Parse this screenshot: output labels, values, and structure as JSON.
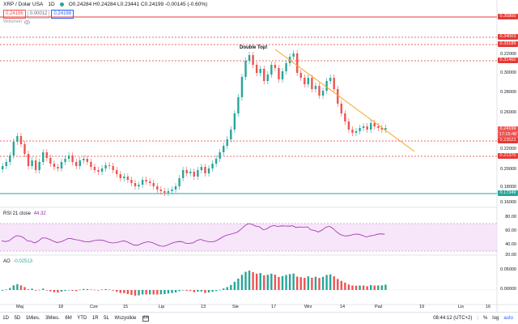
{
  "header": {
    "symbol_title": "XRP / Dolar USA",
    "interval": "1D",
    "ohlc": "O0.24284 H0.24284 L0.23441 C0.24199 -0.00145 (-0.60%)",
    "sell_price": "0.24186",
    "spread": "0.00012",
    "buy_price": "0.24198"
  },
  "volume_label": "Wolumen",
  "chart": {
    "annotation": "Double Top!",
    "price_axis_ticks": [
      "0.30000",
      "0.28000",
      "0.26000",
      "0.22000",
      "0.20000",
      "0.18000",
      "0.16000"
    ],
    "horizontal_levels": [
      {
        "label": "0.35800",
        "color": "#e53935"
      },
      {
        "label": "0.34003",
        "color": "#e53935"
      },
      {
        "label": "0.33189",
        "color": "#e53935"
      },
      {
        "label": "0.31460",
        "color": "#e53935"
      },
      {
        "label": "0.23523",
        "color": "#e53935"
      },
      {
        "label": "0.21370",
        "color": "#e53935"
      },
      {
        "label": "0.17349",
        "color": "#26a69a"
      }
    ],
    "current_price_tag": "0.24199",
    "countdown_tag": "17:15:48",
    "extra_price_tag": "0.22000",
    "x_ticks": [
      "Maj",
      "18",
      "Cze",
      "15",
      "Lip",
      "13",
      "Sie",
      "17",
      "Wrz",
      "14",
      "Paź",
      "19",
      "Lis",
      "16"
    ]
  },
  "rsi": {
    "label": "RSI 21 close",
    "value": "44.32",
    "ticks": [
      "80.00",
      "60.00",
      "40.00",
      "20.00"
    ]
  },
  "ao": {
    "label": "AO",
    "value": "-0.02513",
    "ticks": [
      "0.05000",
      "0.00000"
    ]
  },
  "toolbar": {
    "timeframes": [
      "1D",
      "5D",
      "1Mies.",
      "3Mies.",
      "6M",
      "YTD",
      "1R",
      "5L",
      "Wszystkie"
    ],
    "clock": "08:44:12 (UTC+2)",
    "pct": "%",
    "log": "log",
    "auto": "auto"
  },
  "colors": {
    "up": "#26a69a",
    "down": "#ef5350",
    "trendline": "#f5a623",
    "rsi_line": "#9c27b0",
    "rsi_band": "#f3dcf7"
  }
}
